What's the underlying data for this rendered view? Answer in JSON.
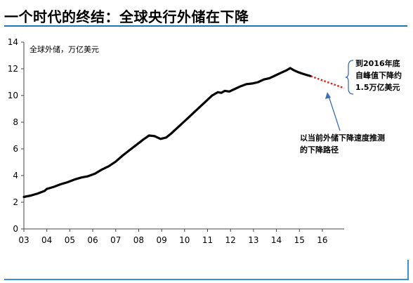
{
  "title": "一个时代的终结：全球央行外储在下降",
  "chart_data": {
    "type": "line",
    "title": "全球外储，万亿美元",
    "xlabel": "",
    "ylabel": "",
    "xlim": [
      2003,
      2016.95
    ],
    "ylim": [
      0,
      14
    ],
    "x_ticks": [
      "03",
      "04",
      "05",
      "06",
      "07",
      "08",
      "09",
      "10",
      "11",
      "12",
      "13",
      "14",
      "15",
      "16"
    ],
    "y_ticks": [
      "0",
      "2",
      "4",
      "6",
      "8",
      "10",
      "12",
      "14"
    ],
    "series": [
      {
        "style": "solid",
        "color": "#000000",
        "x": [
          2003.0,
          2003.3,
          2003.6,
          2003.9,
          2004.0,
          2004.3,
          2004.6,
          2004.9,
          2005.2,
          2005.5,
          2005.8,
          2006.1,
          2006.4,
          2006.7,
          2007.0,
          2007.3,
          2007.6,
          2007.9,
          2008.2,
          2008.45,
          2008.7,
          2008.95,
          2009.2,
          2009.45,
          2009.7,
          2009.95,
          2010.2,
          2010.45,
          2010.7,
          2010.95,
          2011.2,
          2011.45,
          2011.6,
          2011.75,
          2011.95,
          2012.2,
          2012.45,
          2012.7,
          2012.95,
          2013.2,
          2013.45,
          2013.7,
          2013.95,
          2014.2,
          2014.45,
          2014.6,
          2014.75,
          2014.95,
          2015.2,
          2015.5
        ],
        "y": [
          2.4,
          2.5,
          2.65,
          2.85,
          3.0,
          3.15,
          3.35,
          3.5,
          3.7,
          3.85,
          3.95,
          4.15,
          4.45,
          4.7,
          5.05,
          5.5,
          5.9,
          6.3,
          6.7,
          7.0,
          6.95,
          6.75,
          6.85,
          7.2,
          7.6,
          8.0,
          8.4,
          8.8,
          9.2,
          9.6,
          10.0,
          10.25,
          10.2,
          10.35,
          10.3,
          10.5,
          10.7,
          10.85,
          10.9,
          11.0,
          11.2,
          11.3,
          11.5,
          11.7,
          11.9,
          12.05,
          11.9,
          11.75,
          11.6,
          11.45
        ]
      },
      {
        "style": "dotted",
        "color": "#e8231f",
        "x": [
          2015.5,
          2016.95
        ],
        "y": [
          11.45,
          10.55
        ]
      }
    ],
    "annotations": {
      "top_note": [
        "到2016年底",
        "自峰值下降约",
        "1.5万亿美元"
      ],
      "bottom_note": [
        "以当前外储下降速度推测",
        "的下降路径"
      ]
    }
  }
}
